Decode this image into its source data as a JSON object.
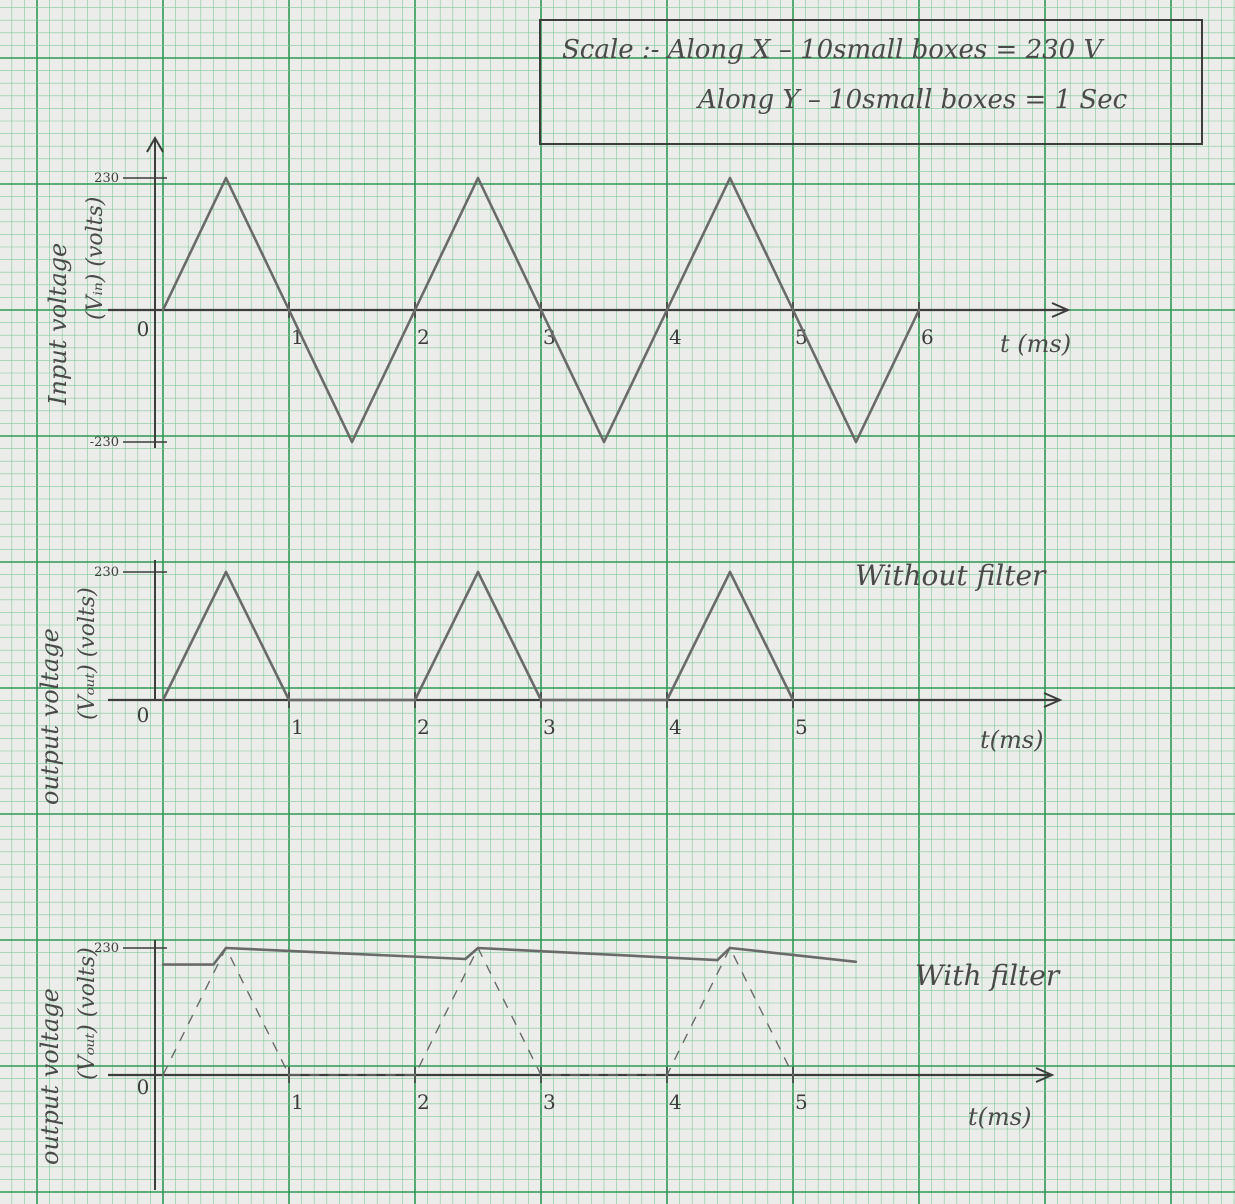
{
  "colors": {
    "paper": "#ecedea",
    "grid_fine": "#7fc79a",
    "grid_major": "#2e9a54",
    "ink": "#3d3d3d",
    "pencil": "#6a6a6a"
  },
  "scale_box": {
    "line1": "Scale :- Along X – 10small boxes = 230 V",
    "line2": "Along Y – 10small boxes = 1 Sec"
  },
  "chart_data": [
    {
      "type": "line",
      "title": "",
      "ylabel_line1": "Input voltage",
      "ylabel_line2": "(Vᵢₙ) (volts)",
      "xlabel": "t (ms)",
      "origin_label": "0",
      "xticks": [
        "1",
        "2",
        "3",
        "4",
        "5",
        "6"
      ],
      "yticks": [
        "230",
        "-230"
      ],
      "xlim": [
        0,
        6
      ],
      "ylim": [
        -230,
        230
      ],
      "annotation": "",
      "series": [
        {
          "style": "solid",
          "x": [
            0,
            0.5,
            1,
            1.5,
            2,
            2.5,
            3,
            3.5,
            4,
            4.5,
            5,
            5.5,
            6
          ],
          "y": [
            0,
            230,
            0,
            -230,
            0,
            230,
            0,
            -230,
            0,
            230,
            0,
            -230,
            0
          ]
        }
      ]
    },
    {
      "type": "line",
      "title": "",
      "ylabel_line1": "output voltage",
      "ylabel_line2": "(Vₒᵤₜ) (volts)",
      "xlabel": "t(ms)",
      "origin_label": "0",
      "xticks": [
        "1",
        "2",
        "3",
        "4",
        "5"
      ],
      "yticks": [
        "230"
      ],
      "xlim": [
        0,
        6
      ],
      "ylim": [
        0,
        230
      ],
      "annotation": "Without filter",
      "series": [
        {
          "style": "solid",
          "x": [
            0,
            0.5,
            1,
            2,
            2.5,
            3,
            4,
            4.5,
            5
          ],
          "y": [
            0,
            230,
            0,
            0,
            230,
            0,
            0,
            230,
            0
          ]
        }
      ]
    },
    {
      "type": "line",
      "title": "",
      "ylabel_line1": "output voltage",
      "ylabel_line2": "(Vₒᵤₜ) (volts)",
      "xlabel": "t(ms)",
      "origin_label": "0",
      "xticks": [
        "1",
        "2",
        "3",
        "4",
        "5"
      ],
      "yticks": [
        "230"
      ],
      "xlim": [
        0,
        6
      ],
      "ylim": [
        0,
        230
      ],
      "annotation": "With filter",
      "series": [
        {
          "style": "solid",
          "x": [
            0,
            0.4,
            0.5,
            2.4,
            2.5,
            4.4,
            4.5,
            5.5
          ],
          "y": [
            200,
            200,
            230,
            210,
            230,
            208,
            230,
            205
          ]
        },
        {
          "style": "dashed",
          "x": [
            0,
            0.5,
            1,
            2,
            2.5,
            3,
            4,
            4.5,
            5
          ],
          "y": [
            0,
            230,
            0,
            0,
            230,
            0,
            0,
            230,
            0
          ]
        }
      ]
    }
  ]
}
